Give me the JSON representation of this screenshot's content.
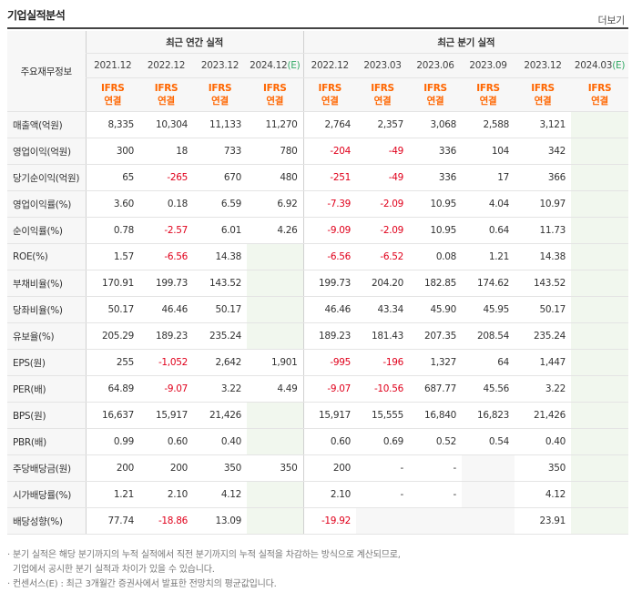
{
  "header": {
    "title": "기업실적분석",
    "more_label": "더보기"
  },
  "table": {
    "row_header_label": "주요재무정보",
    "group_annual": "최근 연간 실적",
    "group_quarterly": "최근 분기 실적",
    "periods": [
      "2021.12",
      "2022.12",
      "2023.12",
      "2024.12(E)",
      "2022.12",
      "2023.03",
      "2023.06",
      "2023.09",
      "2023.12",
      "2024.03(E)"
    ],
    "ifrs_top": "IFRS",
    "ifrs_bottom": "연결",
    "rows": [
      {
        "label": "매출액(억원)",
        "values": [
          "8,335",
          "10,304",
          "11,133",
          "11,270",
          "2,764",
          "2,357",
          "3,068",
          "2,588",
          "3,121",
          ""
        ]
      },
      {
        "label": "영업이익(억원)",
        "values": [
          "300",
          "18",
          "733",
          "780",
          "-204",
          "-49",
          "336",
          "104",
          "342",
          ""
        ]
      },
      {
        "label": "당기순이익(억원)",
        "values": [
          "65",
          "-265",
          "670",
          "480",
          "-251",
          "-49",
          "336",
          "17",
          "366",
          ""
        ]
      },
      {
        "label": "영업이익률(%)",
        "values": [
          "3.60",
          "0.18",
          "6.59",
          "6.92",
          "-7.39",
          "-2.09",
          "10.95",
          "4.04",
          "10.97",
          ""
        ]
      },
      {
        "label": "순이익률(%)",
        "values": [
          "0.78",
          "-2.57",
          "6.01",
          "4.26",
          "-9.09",
          "-2.09",
          "10.95",
          "0.64",
          "11.73",
          ""
        ]
      },
      {
        "label": "ROE(%)",
        "values": [
          "1.57",
          "-6.56",
          "14.38",
          "",
          "-6.56",
          "-6.52",
          "0.08",
          "1.21",
          "14.38",
          ""
        ]
      },
      {
        "label": "부채비율(%)",
        "values": [
          "170.91",
          "199.73",
          "143.52",
          "",
          "199.73",
          "204.20",
          "182.85",
          "174.62",
          "143.52",
          ""
        ]
      },
      {
        "label": "당좌비율(%)",
        "values": [
          "50.17",
          "46.46",
          "50.17",
          "",
          "46.46",
          "43.34",
          "45.90",
          "45.95",
          "50.17",
          ""
        ]
      },
      {
        "label": "유보율(%)",
        "values": [
          "205.29",
          "189.23",
          "235.24",
          "",
          "189.23",
          "181.43",
          "207.35",
          "208.54",
          "235.24",
          ""
        ]
      },
      {
        "label": "EPS(원)",
        "values": [
          "255",
          "-1,052",
          "2,642",
          "1,901",
          "-995",
          "-196",
          "1,327",
          "64",
          "1,447",
          ""
        ]
      },
      {
        "label": "PER(배)",
        "values": [
          "64.89",
          "-9.07",
          "3.22",
          "4.49",
          "-9.07",
          "-10.56",
          "687.77",
          "45.56",
          "3.22",
          ""
        ]
      },
      {
        "label": "BPS(원)",
        "values": [
          "16,637",
          "15,917",
          "21,426",
          "",
          "15,917",
          "15,555",
          "16,840",
          "16,823",
          "21,426",
          ""
        ]
      },
      {
        "label": "PBR(배)",
        "values": [
          "0.99",
          "0.60",
          "0.40",
          "",
          "0.60",
          "0.69",
          "0.52",
          "0.54",
          "0.40",
          ""
        ]
      },
      {
        "label": "주당배당금(원)",
        "values": [
          "200",
          "200",
          "350",
          "350",
          "200",
          "-",
          "-",
          "",
          "350",
          ""
        ]
      },
      {
        "label": "시가배당률(%)",
        "values": [
          "1.21",
          "2.10",
          "4.12",
          "",
          "2.10",
          "-",
          "-",
          "",
          "4.12",
          ""
        ]
      },
      {
        "label": "배당성향(%)",
        "values": [
          "77.74",
          "-18.86",
          "13.09",
          "",
          "-19.92",
          "",
          "",
          "",
          "23.91",
          ""
        ]
      }
    ]
  },
  "notes": [
    "· 분기 실적은 해당 분기까지의 누적 실적에서 직전 분기까지의 누적 실적을 차감하는 방식으로 계산되므로,",
    "  기업에서 공시한 분기 실적과 차이가 있을 수 있습니다.",
    "· 컨센서스(E) : 최근 3개월간 증권사에서 발표한 전망치의 평균값입니다."
  ],
  "colors": {
    "negative": "#e0001b",
    "ifrs": "#ff6600",
    "estimate_bg": "#f1f7ee",
    "estimate_label": "#33aa66"
  }
}
